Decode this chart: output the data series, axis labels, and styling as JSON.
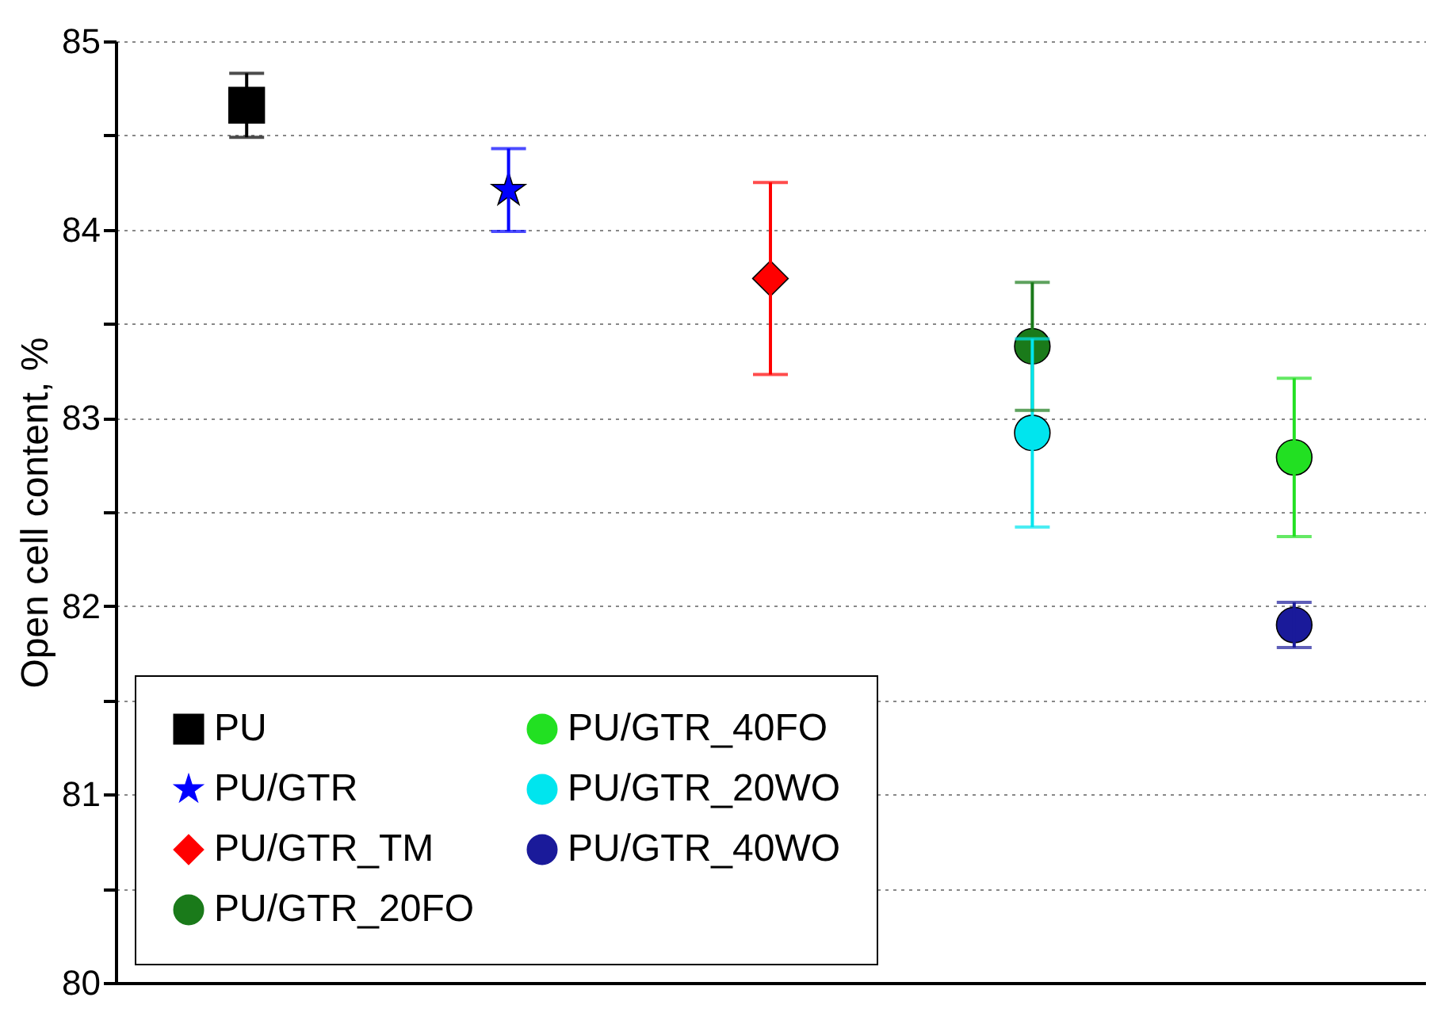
{
  "chart_data": {
    "type": "scatter",
    "ylabel": "Open cell content, %",
    "categories": [
      null,
      null,
      null,
      null,
      null
    ],
    "ylim": [
      80,
      85
    ],
    "yticks": [
      80,
      {
        "value": 80.5,
        "label": null
      },
      81,
      {
        "value": 81.5,
        "label": null
      },
      82,
      {
        "value": 82.5,
        "label": null
      },
      83,
      {
        "value": 83.5,
        "label": null
      },
      84,
      {
        "value": 84.5,
        "label": null
      },
      85
    ],
    "grid": "y",
    "legend": "bottom left",
    "tick_labels": "y",
    "series": [
      {
        "name": "PU",
        "color": "#000000",
        "marker": "square",
        "values": [
          84.66,
          null,
          null,
          null,
          null
        ],
        "errors": [
          0.17,
          null,
          null,
          null,
          null
        ]
      },
      {
        "name": "PU/GTR",
        "color": "#0000ff",
        "marker": "star",
        "values": [
          null,
          84.21,
          null,
          null,
          null
        ],
        "errors": [
          null,
          0.22,
          null,
          null,
          null
        ]
      },
      {
        "name": "PU/GTR_TM",
        "color": "#ff0000",
        "marker": "diamond",
        "values": [
          null,
          null,
          83.74,
          null,
          null
        ],
        "errors": [
          null,
          null,
          0.51,
          null,
          null
        ]
      },
      {
        "name": "PU/GTR_20FO",
        "color": "#1a7a1a",
        "marker": "circle",
        "values": [
          null,
          null,
          null,
          83.38,
          null
        ],
        "errors": [
          null,
          null,
          null,
          0.34,
          null
        ]
      },
      {
        "name": "PU/GTR_40FO",
        "color": "#22e022",
        "marker": "circle",
        "values": [
          null,
          null,
          null,
          null,
          82.79
        ],
        "errors": [
          null,
          null,
          null,
          null,
          0.42
        ]
      },
      {
        "name": "PU/GTR_20WO",
        "color": "#00e5ee",
        "marker": "circle",
        "values": [
          null,
          null,
          null,
          82.92,
          null
        ],
        "errors": [
          null,
          null,
          null,
          0.5,
          null
        ]
      },
      {
        "name": "PU/GTR_40WO",
        "color": "#1a1a9a",
        "marker": "circle",
        "values": [
          null,
          null,
          null,
          null,
          81.9
        ],
        "errors": [
          null,
          null,
          null,
          null,
          0.12
        ]
      }
    ]
  }
}
